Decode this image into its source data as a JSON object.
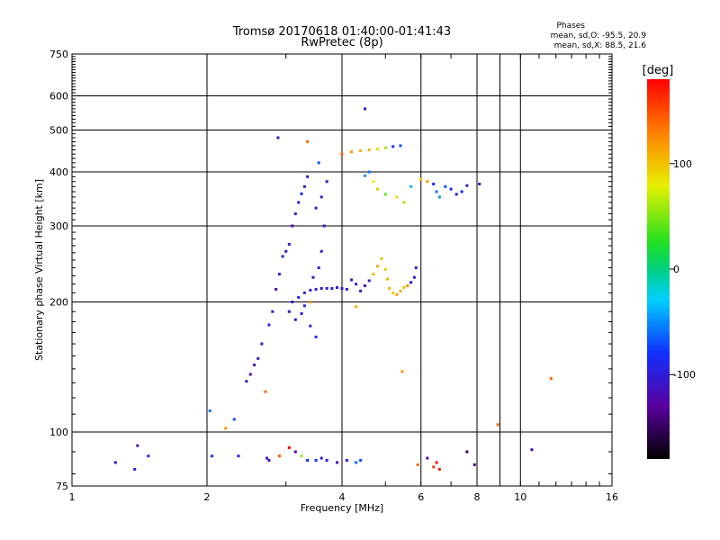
{
  "title_line1": "Tromsø 20170618 01:40:00-01:41:43",
  "title_line2": "RwPretec (8p)",
  "phases": {
    "heading": "Phases",
    "o_line": "mean, sd,O: -95.5, 20.9",
    "x_line": "mean, sd,X: 88.5, 21.6"
  },
  "chart_data": {
    "type": "scatter",
    "xlabel": "Frequency [MHz]",
    "ylabel": "Stationary phase Virtual Height [km]",
    "xscale": "log",
    "yscale": "log",
    "xlim": [
      1,
      16
    ],
    "ylim": [
      75,
      750
    ],
    "x_ticks": [
      1,
      2,
      4,
      6,
      8,
      10,
      16
    ],
    "y_ticks": [
      75,
      100,
      200,
      300,
      400,
      500,
      600,
      750
    ],
    "grid": true,
    "colorbar": {
      "label": "[deg]",
      "range": [
        -180,
        180
      ],
      "ticks": [
        100,
        0,
        -100
      ]
    },
    "points": [
      [
        1.25,
        85,
        -110
      ],
      [
        1.38,
        82,
        -100
      ],
      [
        1.4,
        93,
        -120
      ],
      [
        1.48,
        88,
        -90
      ],
      [
        2.03,
        112,
        -60
      ],
      [
        2.05,
        88,
        -80
      ],
      [
        2.2,
        102,
        120
      ],
      [
        2.3,
        107,
        -70
      ],
      [
        2.35,
        88,
        -100
      ],
      [
        2.45,
        131,
        -110
      ],
      [
        2.5,
        136,
        -120
      ],
      [
        2.55,
        143,
        -115
      ],
      [
        2.6,
        148,
        -105
      ],
      [
        2.65,
        160,
        -110
      ],
      [
        2.7,
        124,
        140
      ],
      [
        2.72,
        87,
        -100
      ],
      [
        2.75,
        177,
        -100
      ],
      [
        2.75,
        86,
        -120
      ],
      [
        2.8,
        190,
        -95
      ],
      [
        2.85,
        214,
        -115
      ],
      [
        2.9,
        232,
        -100
      ],
      [
        2.9,
        88,
        150
      ],
      [
        2.95,
        255,
        -90
      ],
      [
        3.0,
        262,
        -110
      ],
      [
        3.05,
        272,
        -100
      ],
      [
        3.1,
        300,
        -120
      ],
      [
        3.15,
        320,
        -110
      ],
      [
        3.2,
        340,
        -100
      ],
      [
        3.25,
        356,
        -95
      ],
      [
        3.3,
        370,
        -110
      ],
      [
        3.35,
        390,
        -105
      ],
      [
        3.05,
        190,
        -110
      ],
      [
        3.1,
        200,
        -100
      ],
      [
        3.2,
        205,
        -95
      ],
      [
        3.3,
        210,
        -110
      ],
      [
        3.4,
        213,
        -100
      ],
      [
        3.5,
        214,
        -105
      ],
      [
        3.6,
        215,
        -110
      ],
      [
        3.7,
        215,
        -100
      ],
      [
        3.8,
        215,
        -95
      ],
      [
        3.9,
        216,
        -110
      ],
      [
        4.0,
        215,
        -100
      ],
      [
        4.1,
        214,
        -105
      ],
      [
        3.15,
        182,
        -110
      ],
      [
        3.25,
        188,
        -100
      ],
      [
        3.3,
        196,
        -95
      ],
      [
        3.4,
        176,
        -90
      ],
      [
        3.5,
        166,
        -80
      ],
      [
        3.45,
        228,
        -110
      ],
      [
        3.55,
        240,
        -100
      ],
      [
        3.6,
        262,
        -105
      ],
      [
        3.65,
        300,
        -110
      ],
      [
        3.5,
        330,
        -95
      ],
      [
        3.6,
        350,
        -100
      ],
      [
        3.7,
        380,
        -110
      ],
      [
        3.55,
        420,
        -70
      ],
      [
        3.35,
        470,
        140
      ],
      [
        2.88,
        480,
        -110
      ],
      [
        3.4,
        200,
        120
      ],
      [
        4.2,
        225,
        -110
      ],
      [
        4.3,
        220,
        -100
      ],
      [
        4.4,
        212,
        -105
      ],
      [
        4.5,
        218,
        -115
      ],
      [
        4.6,
        224,
        -100
      ],
      [
        4.7,
        232,
        105
      ],
      [
        4.8,
        242,
        110
      ],
      [
        4.9,
        252,
        100
      ],
      [
        5.0,
        238,
        95
      ],
      [
        5.05,
        226,
        110
      ],
      [
        5.1,
        215,
        105
      ],
      [
        5.2,
        210,
        100
      ],
      [
        5.3,
        208,
        115
      ],
      [
        5.4,
        212,
        110
      ],
      [
        5.5,
        216,
        100
      ],
      [
        5.6,
        218,
        120
      ],
      [
        5.7,
        222,
        -110
      ],
      [
        5.8,
        228,
        -100
      ],
      [
        5.85,
        240,
        -95
      ],
      [
        4.0,
        440,
        140
      ],
      [
        4.2,
        445,
        120
      ],
      [
        4.4,
        448,
        110
      ],
      [
        4.6,
        450,
        105
      ],
      [
        4.8,
        452,
        90
      ],
      [
        5.0,
        455,
        60
      ],
      [
        5.2,
        458,
        -80
      ],
      [
        5.4,
        460,
        -70
      ],
      [
        4.5,
        392,
        -50
      ],
      [
        4.6,
        400,
        -60
      ],
      [
        4.7,
        380,
        80
      ],
      [
        4.8,
        365,
        100
      ],
      [
        5.0,
        355,
        40
      ],
      [
        5.3,
        350,
        90
      ],
      [
        5.5,
        340,
        60
      ],
      [
        5.7,
        370,
        -40
      ],
      [
        6.0,
        385,
        100
      ],
      [
        6.2,
        380,
        120
      ],
      [
        6.4,
        375,
        -80
      ],
      [
        6.5,
        360,
        -60
      ],
      [
        6.6,
        350,
        -50
      ],
      [
        6.8,
        370,
        -70
      ],
      [
        7.0,
        365,
        -90
      ],
      [
        7.2,
        355,
        -100
      ],
      [
        7.4,
        360,
        -80
      ],
      [
        7.6,
        372,
        -110
      ],
      [
        8.1,
        375,
        -110
      ],
      [
        4.5,
        560,
        -110
      ],
      [
        4.3,
        195,
        110
      ],
      [
        5.45,
        138,
        120
      ],
      [
        3.35,
        86,
        -90
      ],
      [
        3.5,
        86,
        -80
      ],
      [
        3.6,
        87,
        -110
      ],
      [
        3.7,
        86,
        -100
      ],
      [
        3.9,
        85,
        -120
      ],
      [
        4.1,
        86,
        -100
      ],
      [
        4.3,
        85,
        -60
      ],
      [
        4.4,
        86,
        -70
      ],
      [
        3.05,
        92,
        180
      ],
      [
        3.15,
        90,
        -130
      ],
      [
        3.25,
        88,
        60
      ],
      [
        5.9,
        84,
        140
      ],
      [
        6.2,
        87,
        -120
      ],
      [
        6.4,
        83,
        160
      ],
      [
        6.5,
        85,
        180
      ],
      [
        6.6,
        82,
        170
      ],
      [
        7.6,
        90,
        -150
      ],
      [
        7.9,
        84,
        -140
      ],
      [
        8.9,
        104,
        140
      ],
      [
        10.6,
        91,
        -120
      ],
      [
        11.7,
        133,
        140
      ]
    ]
  }
}
